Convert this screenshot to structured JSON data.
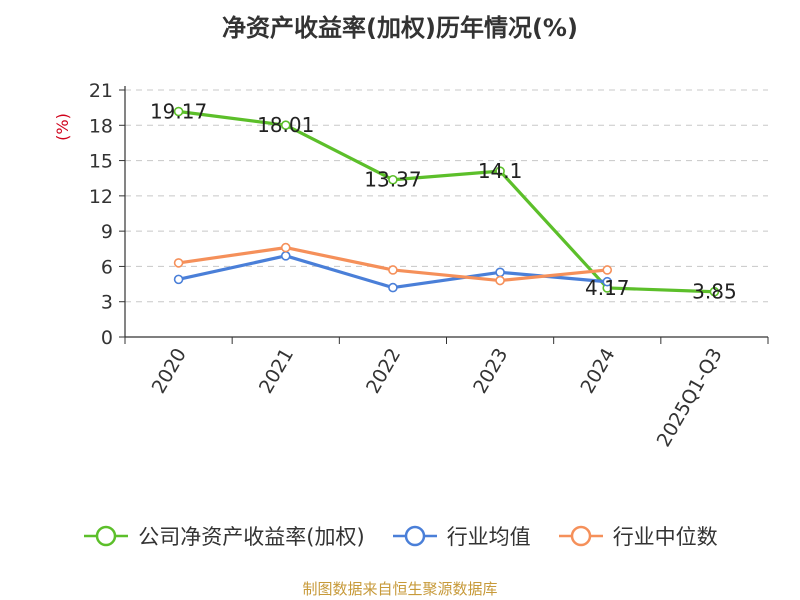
{
  "chart_data": {
    "type": "line",
    "title": "净资产收益率(加权)历年情况(%)",
    "ylabel": "(%)",
    "categories": [
      "2020",
      "2021",
      "2022",
      "2023",
      "2024",
      "2025Q1-Q3"
    ],
    "ylim": [
      0,
      21
    ],
    "yticks": [
      0,
      3,
      6,
      9,
      12,
      15,
      18,
      21
    ],
    "grid": true,
    "legend_position": "bottom",
    "series": [
      {
        "name": "公司净资产收益率(加权)",
        "color": "#5cbf2a",
        "values": [
          19.17,
          18.01,
          13.37,
          14.1,
          4.17,
          3.85
        ],
        "data_labels": [
          "19.17",
          "18.01",
          "13.37",
          "14.1",
          "4.17",
          "3.85"
        ]
      },
      {
        "name": "行业均值",
        "color": "#4a7fd8",
        "values": [
          4.9,
          6.9,
          4.2,
          5.5,
          4.7,
          null
        ]
      },
      {
        "name": "行业中位数",
        "color": "#f5905a",
        "values": [
          6.3,
          7.6,
          5.7,
          4.8,
          5.7,
          null
        ]
      }
    ]
  },
  "footer": {
    "source": "制图数据来自恒生聚源数据库"
  }
}
